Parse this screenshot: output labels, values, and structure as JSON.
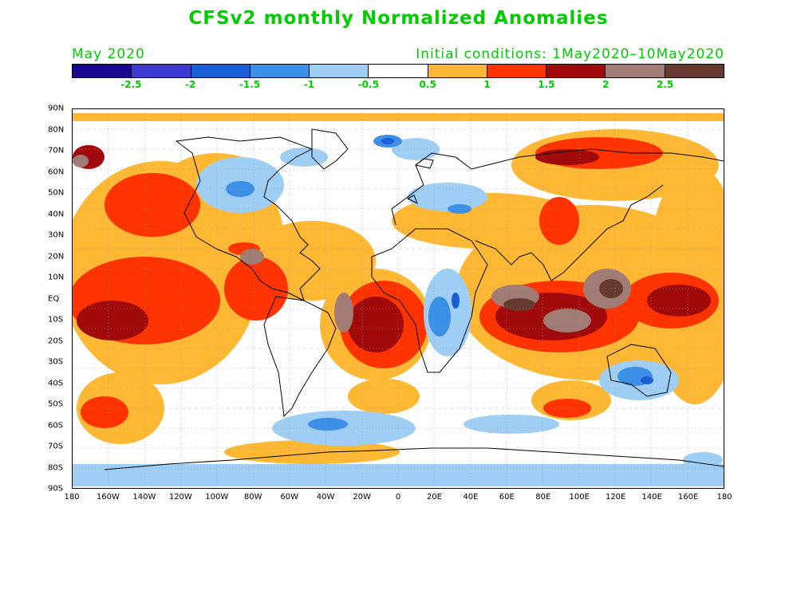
{
  "title": "CFSv2 monthly Normalized Anomalies",
  "period": "May 2020",
  "initial_conditions": "Initial conditions: 1May2020–10May2020",
  "colorbar": {
    "colors": [
      "#1b0a8f",
      "#3c3ad1",
      "#1a5fd6",
      "#3b8fe6",
      "#9fcef5",
      "#ffffff",
      "#ffb833",
      "#ff3300",
      "#a00a0a",
      "#a07c74",
      "#663a30"
    ],
    "labels": [
      "-2.5",
      "-2",
      "-1.5",
      "-1",
      "-0.5",
      "0.5",
      "1",
      "1.5",
      "2",
      "2.5"
    ]
  },
  "axes": {
    "lat_labels": [
      "90N",
      "80N",
      "70N",
      "60N",
      "50N",
      "40N",
      "30N",
      "20N",
      "10N",
      "EQ",
      "10S",
      "20S",
      "30S",
      "40S",
      "50S",
      "60S",
      "70S",
      "80S",
      "90S"
    ],
    "lon_labels": [
      "180",
      "160W",
      "140W",
      "120W",
      "100W",
      "80W",
      "60W",
      "40W",
      "20W",
      "0",
      "20E",
      "40E",
      "60E",
      "80E",
      "100E",
      "120E",
      "140E",
      "160E",
      "180"
    ]
  }
}
